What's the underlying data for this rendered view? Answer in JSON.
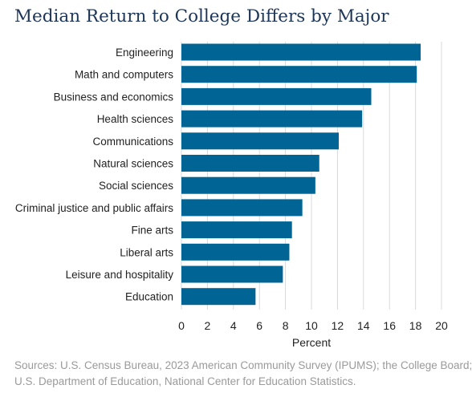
{
  "title": "Median Return to College Differs by Major",
  "source_lines": [
    "Sources: U.S. Census Bureau, 2023 American Community Survey (IPUMS); the College Board;",
    "U.S. Department of Education, National Center for Education Statistics."
  ],
  "colors": {
    "bar": "#006594",
    "title": "#1d3557",
    "grid": "#d9d9d9",
    "source": "#9a9a9a"
  },
  "chart_data": {
    "type": "bar",
    "orientation": "horizontal",
    "title": "Median Return to College Differs by Major",
    "xlabel": "Percent",
    "ylabel": "",
    "xlim": [
      0,
      20
    ],
    "xticks": [
      0,
      2,
      4,
      6,
      8,
      10,
      12,
      14,
      16,
      18,
      20
    ],
    "grid": "vertical",
    "categories": [
      "Engineering",
      "Math and computers",
      "Business and economics",
      "Health sciences",
      "Communications",
      "Natural sciences",
      "Social sciences",
      "Criminal justice and public affairs",
      "Fine arts",
      "Liberal arts",
      "Leisure and hospitality",
      "Education"
    ],
    "values": [
      18.4,
      18.1,
      14.6,
      13.9,
      12.1,
      10.6,
      10.3,
      9.3,
      8.5,
      8.3,
      7.8,
      5.7
    ]
  }
}
